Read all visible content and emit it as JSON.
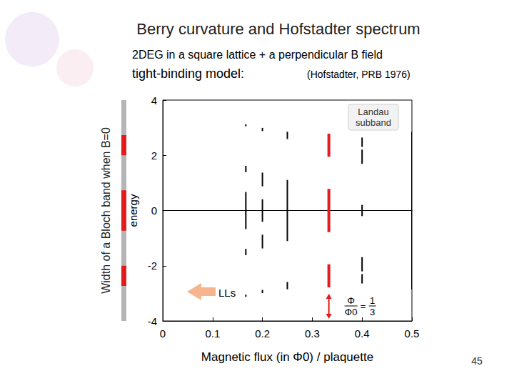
{
  "slide": {
    "title": "Berry curvature and Hofstadter spectrum",
    "subtitle": "2DEG in a square lattice + a perpendicular B field",
    "model": "tight-binding model:",
    "reference": "(Hofstadter, PRB 1976)",
    "side_label": "Width of a Bloch band when B=0",
    "page_number": "45"
  },
  "chart_data": {
    "type": "band_spectrum",
    "x_label": "Magnetic flux (in Φ0) / plaquette",
    "y_label": "energy",
    "xlim": [
      0,
      0.5
    ],
    "xticks": [
      0,
      0.1,
      0.2,
      0.3,
      0.4,
      0.5
    ],
    "ylim": [
      -4,
      4
    ],
    "yticks": [
      -4,
      -2,
      0,
      2,
      4
    ],
    "grid": false,
    "color": "#000000",
    "bands": [
      {
        "x": 0,
        "ranges": [
          [
            -4,
            4
          ]
        ]
      },
      {
        "x": 0.1667,
        "ranges": [
          [
            -3.096,
            -3.076
          ],
          [
            -1.592,
            -1.414
          ],
          [
            -0.646,
            0
          ],
          [
            0,
            0.646
          ],
          [
            1.414,
            1.592
          ],
          [
            3.076,
            3.096
          ]
        ]
      },
      {
        "x": 0.2,
        "ranges": [
          [
            -2.967,
            -2.902
          ],
          [
            -1.348,
            -0.902
          ],
          [
            -0.381,
            0.381
          ],
          [
            0.902,
            1.348
          ],
          [
            2.902,
            2.967
          ]
        ]
      },
      {
        "x": 0.25,
        "ranges": [
          [
            -2.828,
            -2.613
          ],
          [
            -1.082,
            0
          ],
          [
            0,
            1.082
          ],
          [
            2.613,
            2.828
          ]
        ]
      },
      {
        "x": 0.3333,
        "ranges": [
          [
            -2.732,
            -2
          ],
          [
            -0.732,
            0.732
          ],
          [
            2,
            2.732
          ]
        ],
        "color": "#e41a1c"
      },
      {
        "x": 0.4,
        "ranges": [
          [
            -2.617,
            -2.33
          ],
          [
            -2.18,
            -1.715
          ],
          [
            -0.176,
            0.176
          ],
          [
            1.715,
            2.18
          ],
          [
            2.33,
            2.617
          ]
        ]
      },
      {
        "x": 0.5,
        "ranges": [
          [
            -2.828,
            0
          ],
          [
            0,
            2.828
          ]
        ]
      }
    ],
    "annotations": {
      "landau_subband": "Landau subband",
      "lls": "LLs"
    },
    "flux_label": {
      "numerator": "Φ",
      "denominator": "Φ0",
      "value_numerator": "1",
      "value_denominator": "3"
    }
  }
}
